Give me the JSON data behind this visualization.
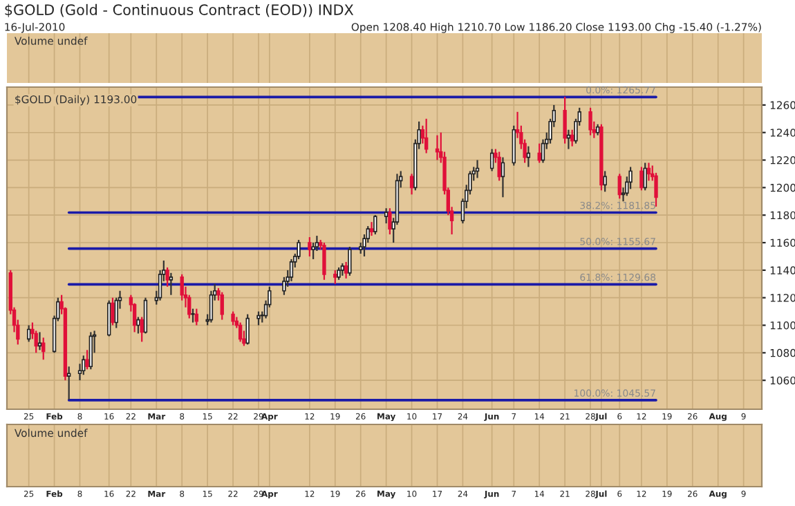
{
  "chart_data": {
    "type": "candlestick",
    "title": "$GOLD (Gold - Continuous Contract (EOD)) INDX",
    "subtitle": "16-Jul-2010",
    "annotations": [
      "Open 1208.40 High 1210.70 Low 1186.20 Close 1193.00 Chg -15.40 (-1.27%)",
      "$GOLD (Daily) 1193.00",
      "Volume undef",
      "Volume undef"
    ],
    "x": [
      "2010-01-20",
      "2010-01-21",
      "2010-01-22",
      "2010-01-25",
      "2010-01-26",
      "2010-01-27",
      "2010-01-28",
      "2010-01-29",
      "2010-02-01",
      "2010-02-02",
      "2010-02-03",
      "2010-02-04",
      "2010-02-05",
      "2010-02-08",
      "2010-02-09",
      "2010-02-10",
      "2010-02-11",
      "2010-02-12",
      "2010-02-16",
      "2010-02-17",
      "2010-02-18",
      "2010-02-19",
      "2010-02-22",
      "2010-02-23",
      "2010-02-24",
      "2010-02-25",
      "2010-02-26",
      "2010-03-01",
      "2010-03-02",
      "2010-03-03",
      "2010-03-04",
      "2010-03-05",
      "2010-03-08",
      "2010-03-09",
      "2010-03-10",
      "2010-03-11",
      "2010-03-12",
      "2010-03-15",
      "2010-03-16",
      "2010-03-17",
      "2010-03-18",
      "2010-03-19",
      "2010-03-22",
      "2010-03-23",
      "2010-03-24",
      "2010-03-25",
      "2010-03-26",
      "2010-03-29",
      "2010-03-30",
      "2010-03-31",
      "2010-04-01",
      "2010-04-05",
      "2010-04-06",
      "2010-04-07",
      "2010-04-08",
      "2010-04-09",
      "2010-04-12",
      "2010-04-13",
      "2010-04-14",
      "2010-04-15",
      "2010-04-16",
      "2010-04-19",
      "2010-04-20",
      "2010-04-21",
      "2010-04-22",
      "2010-04-23",
      "2010-04-26",
      "2010-04-27",
      "2010-04-28",
      "2010-04-29",
      "2010-04-30",
      "2010-05-03",
      "2010-05-04",
      "2010-05-05",
      "2010-05-06",
      "2010-05-07",
      "2010-05-10",
      "2010-05-11",
      "2010-05-12",
      "2010-05-13",
      "2010-05-14",
      "2010-05-17",
      "2010-05-18",
      "2010-05-19",
      "2010-05-20",
      "2010-05-21",
      "2010-05-24",
      "2010-05-25",
      "2010-05-26",
      "2010-05-27",
      "2010-05-28",
      "2010-06-01",
      "2010-06-02",
      "2010-06-03",
      "2010-06-04",
      "2010-06-07",
      "2010-06-08",
      "2010-06-09",
      "2010-06-10",
      "2010-06-11",
      "2010-06-14",
      "2010-06-15",
      "2010-06-16",
      "2010-06-17",
      "2010-06-18",
      "2010-06-21",
      "2010-06-22",
      "2010-06-23",
      "2010-06-24",
      "2010-06-25",
      "2010-06-28",
      "2010-06-29",
      "2010-06-30",
      "2010-07-01",
      "2010-07-02",
      "2010-07-06",
      "2010-07-07",
      "2010-07-08",
      "2010-07-09",
      "2010-07-12",
      "2010-07-13",
      "2010-07-14",
      "2010-07-15",
      "2010-07-16"
    ],
    "ohlc": [
      [
        1138,
        1140,
        1108,
        1111
      ],
      [
        1111,
        1113,
        1095,
        1100
      ],
      [
        1100,
        1104,
        1086,
        1090
      ],
      [
        1090,
        1100,
        1088,
        1097
      ],
      [
        1097,
        1102,
        1090,
        1094
      ],
      [
        1094,
        1096,
        1080,
        1085
      ],
      [
        1085,
        1095,
        1082,
        1087
      ],
      [
        1087,
        1091,
        1075,
        1081
      ],
      [
        1081,
        1107,
        1080,
        1105
      ],
      [
        1105,
        1120,
        1103,
        1117
      ],
      [
        1117,
        1122,
        1108,
        1112
      ],
      [
        1112,
        1113,
        1060,
        1063
      ],
      [
        1063,
        1070,
        1046,
        1065
      ],
      [
        1065,
        1072,
        1060,
        1067
      ],
      [
        1067,
        1078,
        1064,
        1075
      ],
      [
        1075,
        1082,
        1068,
        1070
      ],
      [
        1070,
        1095,
        1068,
        1092
      ],
      [
        1092,
        1096,
        1080,
        1093
      ],
      [
        1093,
        1118,
        1092,
        1116
      ],
      [
        1116,
        1120,
        1100,
        1102
      ],
      [
        1102,
        1120,
        1098,
        1118
      ],
      [
        1118,
        1125,
        1112,
        1120
      ],
      [
        1120,
        1122,
        1110,
        1115
      ],
      [
        1115,
        1116,
        1095,
        1100
      ],
      [
        1100,
        1106,
        1094,
        1104
      ],
      [
        1104,
        1106,
        1088,
        1095
      ],
      [
        1095,
        1120,
        1094,
        1118
      ],
      [
        1118,
        1125,
        1115,
        1120
      ],
      [
        1120,
        1140,
        1118,
        1137
      ],
      [
        1137,
        1147,
        1132,
        1140
      ],
      [
        1140,
        1142,
        1128,
        1133
      ],
      [
        1133,
        1138,
        1122,
        1135
      ],
      [
        1135,
        1137,
        1118,
        1122
      ],
      [
        1122,
        1128,
        1113,
        1120
      ],
      [
        1120,
        1122,
        1105,
        1108
      ],
      [
        1108,
        1112,
        1102,
        1108
      ],
      [
        1108,
        1112,
        1100,
        1103
      ],
      [
        1103,
        1108,
        1100,
        1104
      ],
      [
        1104,
        1125,
        1102,
        1122
      ],
      [
        1122,
        1130,
        1118,
        1125
      ],
      [
        1125,
        1127,
        1118,
        1122
      ],
      [
        1122,
        1124,
        1104,
        1108
      ],
      [
        1108,
        1110,
        1100,
        1103
      ],
      [
        1103,
        1106,
        1098,
        1100
      ],
      [
        1100,
        1102,
        1088,
        1090
      ],
      [
        1090,
        1096,
        1085,
        1087
      ],
      [
        1087,
        1108,
        1086,
        1105
      ],
      [
        1105,
        1110,
        1100,
        1107
      ],
      [
        1107,
        1110,
        1102,
        1107
      ],
      [
        1107,
        1118,
        1105,
        1115
      ],
      [
        1115,
        1128,
        1113,
        1125
      ],
      [
        1125,
        1135,
        1122,
        1132
      ],
      [
        1132,
        1140,
        1128,
        1135
      ],
      [
        1135,
        1148,
        1132,
        1146
      ],
      [
        1146,
        1152,
        1142,
        1150
      ],
      [
        1150,
        1162,
        1148,
        1160
      ],
      [
        1160,
        1164,
        1150,
        1155
      ],
      [
        1155,
        1160,
        1148,
        1157
      ],
      [
        1157,
        1165,
        1154,
        1160
      ],
      [
        1160,
        1162,
        1155,
        1158
      ],
      [
        1158,
        1160,
        1133,
        1137
      ],
      [
        1137,
        1140,
        1130,
        1135
      ],
      [
        1135,
        1142,
        1133,
        1140
      ],
      [
        1140,
        1145,
        1136,
        1143
      ],
      [
        1143,
        1146,
        1134,
        1138
      ],
      [
        1138,
        1157,
        1136,
        1155
      ],
      [
        1155,
        1160,
        1152,
        1157
      ],
      [
        1157,
        1166,
        1150,
        1163
      ],
      [
        1163,
        1172,
        1160,
        1170
      ],
      [
        1170,
        1175,
        1165,
        1168
      ],
      [
        1168,
        1180,
        1166,
        1179
      ],
      [
        1179,
        1185,
        1174,
        1182
      ],
      [
        1182,
        1185,
        1166,
        1170
      ],
      [
        1170,
        1178,
        1160,
        1175
      ],
      [
        1175,
        1210,
        1173,
        1205
      ],
      [
        1205,
        1212,
        1200,
        1208
      ],
      [
        1208,
        1210,
        1195,
        1200
      ],
      [
        1200,
        1235,
        1198,
        1232
      ],
      [
        1232,
        1248,
        1228,
        1242
      ],
      [
        1242,
        1245,
        1232,
        1236
      ],
      [
        1236,
        1250,
        1225,
        1228
      ],
      [
        1228,
        1238,
        1220,
        1226
      ],
      [
        1226,
        1240,
        1218,
        1222
      ],
      [
        1222,
        1226,
        1195,
        1198
      ],
      [
        1198,
        1200,
        1180,
        1183
      ],
      [
        1183,
        1186,
        1166,
        1176
      ],
      [
        1176,
        1192,
        1174,
        1190
      ],
      [
        1190,
        1202,
        1185,
        1198
      ],
      [
        1198,
        1212,
        1195,
        1210
      ],
      [
        1210,
        1215,
        1205,
        1212
      ],
      [
        1212,
        1220,
        1207,
        1214
      ],
      [
        1214,
        1228,
        1212,
        1225
      ],
      [
        1225,
        1228,
        1218,
        1222
      ],
      [
        1222,
        1226,
        1205,
        1208
      ],
      [
        1208,
        1222,
        1193,
        1218
      ],
      [
        1218,
        1245,
        1216,
        1242
      ],
      [
        1242,
        1255,
        1236,
        1240
      ],
      [
        1240,
        1245,
        1228,
        1232
      ],
      [
        1232,
        1235,
        1218,
        1222
      ],
      [
        1222,
        1230,
        1215,
        1225
      ],
      [
        1225,
        1232,
        1218,
        1220
      ],
      [
        1220,
        1235,
        1218,
        1232
      ],
      [
        1232,
        1240,
        1228,
        1235
      ],
      [
        1235,
        1250,
        1232,
        1248
      ],
      [
        1248,
        1260,
        1244,
        1256
      ],
      [
        1256,
        1266,
        1232,
        1236
      ],
      [
        1236,
        1242,
        1228,
        1238
      ],
      [
        1238,
        1242,
        1230,
        1234
      ],
      [
        1234,
        1250,
        1232,
        1248
      ],
      [
        1248,
        1258,
        1245,
        1255
      ],
      [
        1255,
        1258,
        1238,
        1242
      ],
      [
        1242,
        1248,
        1236,
        1240
      ],
      [
        1240,
        1246,
        1238,
        1244
      ],
      [
        1244,
        1246,
        1198,
        1202
      ],
      [
        1202,
        1212,
        1197,
        1208
      ],
      [
        1208,
        1210,
        1192,
        1195
      ],
      [
        1195,
        1200,
        1190,
        1196
      ],
      [
        1196,
        1208,
        1194,
        1204
      ],
      [
        1204,
        1215,
        1199,
        1212
      ],
      [
        1212,
        1215,
        1198,
        1200
      ],
      [
        1200,
        1218,
        1198,
        1214
      ],
      [
        1214,
        1218,
        1205,
        1210
      ],
      [
        1210,
        1216,
        1205,
        1208
      ],
      [
        1208.4,
        1210.7,
        1186.2,
        1193
      ]
    ],
    "xlim": [
      "2010-01-19",
      "2010-08-14"
    ],
    "xticks": [
      {
        "value": "2010-01-25",
        "label": "25"
      },
      {
        "value": "2010-02-01",
        "label": "Feb"
      },
      {
        "value": "2010-02-08",
        "label": "8"
      },
      {
        "value": "2010-02-16",
        "label": "16"
      },
      {
        "value": "2010-02-22",
        "label": "22"
      },
      {
        "value": "2010-03-01",
        "label": "Mar"
      },
      {
        "value": "2010-03-08",
        "label": "8"
      },
      {
        "value": "2010-03-15",
        "label": "15"
      },
      {
        "value": "2010-03-22",
        "label": "22"
      },
      {
        "value": "2010-03-29",
        "label": "29"
      },
      {
        "value": "2010-04-01",
        "label": "Apr"
      },
      {
        "value": "2010-04-12",
        "label": "12"
      },
      {
        "value": "2010-04-19",
        "label": "19"
      },
      {
        "value": "2010-04-26",
        "label": "26"
      },
      {
        "value": "2010-05-03",
        "label": "May"
      },
      {
        "value": "2010-05-10",
        "label": "10"
      },
      {
        "value": "2010-05-17",
        "label": "17"
      },
      {
        "value": "2010-05-24",
        "label": "24"
      },
      {
        "value": "2010-06-01",
        "label": "Jun"
      },
      {
        "value": "2010-06-07",
        "label": "7"
      },
      {
        "value": "2010-06-14",
        "label": "14"
      },
      {
        "value": "2010-06-21",
        "label": "21"
      },
      {
        "value": "2010-06-28",
        "label": "28"
      },
      {
        "value": "2010-07-01",
        "label": "Jul"
      },
      {
        "value": "2010-07-06",
        "label": "6"
      },
      {
        "value": "2010-07-12",
        "label": "12"
      },
      {
        "value": "2010-07-19",
        "label": "19"
      },
      {
        "value": "2010-07-26",
        "label": "26"
      },
      {
        "value": "2010-08-02",
        "label": "Aug"
      },
      {
        "value": "2010-08-09",
        "label": "9"
      }
    ],
    "ylim": [
      1039,
      1273
    ],
    "yticks": [
      1060,
      1080,
      1100,
      1120,
      1140,
      1160,
      1180,
      1200,
      1220,
      1240,
      1260
    ],
    "grid": true,
    "ref_lines": [
      {
        "axis": "y",
        "value": 1265.77,
        "label": "0.0%: 1265.77",
        "color": "#1a1aa8"
      },
      {
        "axis": "y",
        "value": 1181.85,
        "label": "38.2%: 1181.85",
        "color": "#1a1aa8"
      },
      {
        "axis": "y",
        "value": 1155.67,
        "label": "50.0%: 1155.67",
        "color": "#1a1aa8"
      },
      {
        "axis": "y",
        "value": 1129.68,
        "label": "61.8%: 1129.68",
        "color": "#1a1aa8"
      },
      {
        "axis": "y",
        "value": 1045.57,
        "label": "100.0%: 1045.57",
        "color": "#1a1aa8"
      }
    ]
  }
}
